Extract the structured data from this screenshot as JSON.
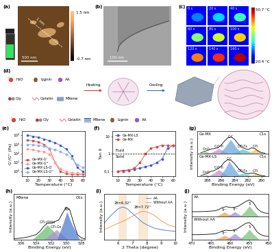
{
  "panels": {
    "a": {
      "panel_label": "(a)",
      "scale_bar": "500 nm",
      "height_line": "1 nm",
      "colorbar": {
        "max": "1.5 nm",
        "min": "-0.7 nm"
      }
    },
    "b": {
      "panel_label": "(b)",
      "scale_bar": "100 nm"
    },
    "c": {
      "panel_label": "(c)",
      "frames": [
        "0 s",
        "20 s",
        "40 s",
        "60 s",
        "80 s",
        "100 s",
        "120 s",
        "140 s",
        "160 s"
      ],
      "colorbar": {
        "max": "50.7 °C",
        "min": "20.4 °C"
      }
    },
    "d": {
      "panel_label": "(d)",
      "components": [
        "H₂O",
        "Lignin",
        "AA",
        "Gly",
        "Gelatin",
        "MXene"
      ],
      "steps": [
        "Heating",
        "Cooling"
      ],
      "key_items": [
        "H₂O",
        "Gly",
        "Gelatin",
        "MXene",
        "Lignin",
        "AA"
      ]
    }
  },
  "chart_data": [
    {
      "panel_label": "(e)",
      "type": "line",
      "xlabel": "Temperature (°C)",
      "ylabel": "G'/G'' (Pa)",
      "log": "y",
      "x": [
        10,
        15,
        20,
        25,
        30,
        35,
        40,
        45,
        50,
        55,
        60
      ],
      "xlim": [
        5,
        62
      ],
      "xticks": [
        10,
        20,
        30,
        40,
        50,
        60
      ],
      "ylim": [
        0.3,
        30000
      ],
      "yticks": [
        {
          "value": 1,
          "label": "10⁰"
        },
        {
          "value": 10,
          "label": "10¹"
        },
        {
          "value": 100,
          "label": "10²"
        },
        {
          "value": 1000,
          "label": "10³"
        },
        {
          "value": 10000,
          "label": "10⁴"
        }
      ],
      "legend": "lower left",
      "series": [
        {
          "name": "Ge-MX-G'",
          "color": "#e8413c",
          "marker": "square",
          "values": [
            3000,
            2500,
            1800,
            1000,
            300,
            10,
            1,
            0.6,
            0.5,
            0.5,
            0.5
          ]
        },
        {
          "name": "Ge-MX-G''",
          "color": "#f4a09a",
          "marker": "circle",
          "values": [
            300,
            250,
            200,
            150,
            80,
            10,
            2,
            1,
            0.8,
            0.7,
            0.7
          ]
        },
        {
          "name": "Ge-MX-LS-G'",
          "color": "#3a5fcd",
          "marker": "square",
          "values": [
            10000,
            8000,
            6000,
            4000,
            2500,
            1500,
            800,
            300,
            60,
            3,
            1
          ]
        },
        {
          "name": "Ge-MX-LS-G''",
          "color": "#8fb4e8",
          "marker": "circle",
          "values": [
            1000,
            900,
            800,
            600,
            400,
            250,
            150,
            80,
            30,
            6,
            3
          ]
        }
      ]
    },
    {
      "panel_label": "(f)",
      "type": "line",
      "xlabel": "Temperature (°C)",
      "ylabel": "Tan δ",
      "log": "y",
      "x": [
        10,
        15,
        20,
        25,
        30,
        35,
        40,
        45,
        50,
        55,
        60
      ],
      "xlim": [
        5,
        62
      ],
      "xticks": [
        10,
        20,
        30,
        40,
        50,
        60
      ],
      "ylim": [
        0.05,
        20
      ],
      "yticks": [
        0.1,
        1,
        10
      ],
      "threshold": 1,
      "regions": {
        "above": "Fluid",
        "below": "Solid"
      },
      "legend": "upper left",
      "series": [
        {
          "name": "Ge-MX-LS",
          "color": "#3a5fcd",
          "marker": "circle",
          "values": [
            0.1,
            0.11,
            0.12,
            0.13,
            0.15,
            0.18,
            0.22,
            0.3,
            0.5,
            2,
            3
          ]
        },
        {
          "name": "Ge-MX",
          "color": "#e8413c",
          "marker": "circle",
          "values": [
            0.1,
            0.1,
            0.11,
            0.15,
            0.3,
            1,
            2,
            2.5,
            3,
            3,
            3
          ]
        }
      ]
    },
    {
      "panel_label": "(g)",
      "type": "line",
      "title": "C1s",
      "xlabel": "Binding Energy (eV)",
      "ylabel": "Intensity (a.u.)",
      "tick_labels": "x",
      "xlim": [
        289.5,
        279
      ],
      "xticks": [
        288,
        286,
        284,
        282,
        280
      ],
      "ylim": [
        0,
        1.35
      ],
      "panels": [
        {
          "name": "Ge-MX",
          "x": [
            289,
            288.5,
            288,
            287.5,
            287,
            286.5,
            286,
            285.5,
            285,
            284.5,
            284,
            283.5,
            283,
            282.5,
            282,
            281.5,
            281,
            280.5,
            280,
            279.5
          ],
          "values": [
            0.05,
            0.12,
            0.2,
            0.28,
            0.3,
            0.35,
            0.5,
            0.75,
            0.95,
            1.0,
            0.85,
            0.6,
            0.4,
            0.3,
            0.25,
            0.35,
            0.3,
            0.15,
            0.06,
            0.03
          ],
          "components": [
            {
              "name": "C=O",
              "color": "#7fbf7f",
              "x": [
                289,
                288.5,
                288.2,
                287.9,
                287.4
              ],
              "values": [
                0,
                0.08,
                0.13,
                0.08,
                0
              ]
            },
            {
              "name": "C-O-Ti",
              "color": "#c78fd1",
              "x": [
                288,
                287,
                286.3,
                285.6,
                284.8
              ],
              "values": [
                0,
                0.15,
                0.3,
                0.15,
                0
              ]
            },
            {
              "name": "C-C",
              "color": "#6fa8dc",
              "x": [
                286.2,
                285.3,
                284.6,
                283.9,
                283
              ],
              "values": [
                0,
                0.45,
                0.85,
                0.45,
                0
              ]
            },
            {
              "name": "C-Ti-Tx",
              "color": "#5ec4c4",
              "x": [
                284.5,
                283.5,
                282.8,
                282,
                281.2
              ],
              "values": [
                0,
                0.15,
                0.28,
                0.15,
                0
              ]
            },
            {
              "name": "C-Ti",
              "color": "#f0c05a",
              "x": [
                282.2,
                281.4,
                280.9,
                280.4,
                279.7
              ],
              "values": [
                0,
                0.15,
                0.28,
                0.15,
                0
              ]
            }
          ]
        },
        {
          "name": "Ge-MX-LS",
          "x": [
            289,
            288.5,
            288,
            287.5,
            287,
            286.5,
            286,
            285.5,
            285,
            284.5,
            284,
            283.5,
            283,
            282.5,
            282,
            281.5,
            281,
            280.5,
            280,
            279.5
          ],
          "values": [
            0.05,
            0.1,
            0.2,
            0.3,
            0.35,
            0.45,
            0.6,
            0.85,
            1.0,
            0.95,
            0.75,
            0.5,
            0.3,
            0.2,
            0.15,
            0.2,
            0.18,
            0.1,
            0.05,
            0.02
          ],
          "components": [
            {
              "name": "C=O",
              "color": "#7fbf7f",
              "x": [
                289,
                288.5,
                288.2,
                287.9,
                287.4
              ],
              "values": [
                0,
                0.06,
                0.1,
                0.06,
                0
              ]
            },
            {
              "name": "C-O-Ti",
              "color": "#c78fd1",
              "x": [
                288,
                287,
                286.3,
                285.6,
                284.8
              ],
              "values": [
                0,
                0.2,
                0.4,
                0.2,
                0
              ]
            },
            {
              "name": "C-C",
              "color": "#6fa8dc",
              "x": [
                286.2,
                285.3,
                284.8,
                284.1,
                283.2
              ],
              "values": [
                0,
                0.5,
                0.9,
                0.5,
                0
              ]
            },
            {
              "name": "C-Ti-Tx",
              "color": "#5ec4c4",
              "x": [
                284.5,
                283.5,
                282.8,
                282,
                281.2
              ],
              "values": [
                0,
                0.1,
                0.18,
                0.1,
                0
              ]
            },
            {
              "name": "C-Ti",
              "color": "#f0c05a",
              "x": [
                282.2,
                281.4,
                280.9,
                280.4,
                279.7
              ],
              "values": [
                0,
                0.1,
                0.17,
                0.1,
                0
              ]
            }
          ]
        }
      ]
    },
    {
      "panel_label": "(h)",
      "type": "line",
      "title": "O1s",
      "xlabel": "Binding Energy (eV)",
      "ylabel": "Intensity (a.u.)",
      "tick_labels": "x",
      "xlim": [
        537,
        527.5
      ],
      "xticks": [
        536,
        534,
        532,
        530,
        528
      ],
      "ylim": [
        0,
        1.4
      ],
      "panels": [
        {
          "name": "MXene",
          "x": [
            537,
            536,
            535,
            534,
            533.5,
            533,
            532.5,
            532,
            531.5,
            531,
            530.5,
            530,
            529.5,
            529,
            528.5,
            528,
            527.5
          ],
          "values": [
            0.02,
            0.04,
            0.08,
            0.15,
            0.25,
            0.4,
            0.5,
            0.5,
            0.55,
            0.6,
            0.8,
            1.0,
            0.9,
            0.5,
            0.15,
            0.05,
            0.02
          ],
          "components": [
            {
              "name": "C-Ti-(OH)x",
              "color": "#6fbf73",
              "x": [
                534.5,
                533.3,
                532.5,
                531.7,
                530.8
              ],
              "values": [
                0,
                0.25,
                0.45,
                0.25,
                0
              ]
            },
            {
              "name": "C-Ti-Ox",
              "color": "#b38fd9",
              "x": [
                533,
                532,
                531.3,
                530.6,
                529.8
              ],
              "values": [
                0,
                0.16,
                0.3,
                0.16,
                0
              ]
            },
            {
              "name": "TiO₂",
              "color": "#4f7fd1",
              "x": [
                531.2,
                530.4,
                529.9,
                529.3,
                528.2
              ],
              "values": [
                0,
                0.5,
                0.85,
                0.5,
                0
              ]
            }
          ]
        }
      ]
    },
    {
      "panel_label": "(i)",
      "type": "line",
      "xlabel": "2 Theta (degree)",
      "ylabel": "Intensity (a.u.)",
      "tick_labels": "x",
      "x": [
        5,
        5.5,
        6,
        6.32,
        6.6,
        7,
        7.5,
        7.72,
        8,
        8.5,
        9,
        9.5,
        10
      ],
      "xlim": [
        5,
        10
      ],
      "xticks": [
        6,
        7,
        8,
        9,
        10
      ],
      "ylim": [
        0,
        1.4
      ],
      "legend": "upper right",
      "bands": [
        [
          6.0,
          6.6
        ],
        [
          7.4,
          8.1
        ]
      ],
      "annotations": [
        {
          "text": "2θ=6.32°",
          "x": 6.32
        },
        {
          "text": "2θ=7.72°",
          "x": 7.72
        }
      ],
      "series": [
        {
          "name": "AA",
          "color": "#3b6fd1",
          "values": [
            0.5,
            0.75,
            0.95,
            1.0,
            0.95,
            0.8,
            0.6,
            0.52,
            0.45,
            0.35,
            0.3,
            0.27,
            0.25
          ]
        },
        {
          "name": "Without AA",
          "color": "#f08a3c",
          "values": [
            0.3,
            0.4,
            0.5,
            0.56,
            0.62,
            0.72,
            0.84,
            0.87,
            0.85,
            0.75,
            0.58,
            0.45,
            0.38
          ]
        }
      ]
    },
    {
      "panel_label": "(j)",
      "type": "line",
      "xlabel": "Binding Energy (eV)",
      "ylabel": "Intensity (a.u.)",
      "tick_labels": "x",
      "xlim": [
        470,
        450
      ],
      "xticks": [
        470,
        465,
        460,
        455,
        450
      ],
      "ylim": [
        0,
        1.35
      ],
      "panels": [
        {
          "name": "AA",
          "x": [
            470,
            468,
            466,
            464,
            463,
            462,
            461,
            460,
            459,
            458,
            457,
            456,
            455,
            454,
            453,
            452,
            451,
            450
          ],
          "values": [
            0.3,
            0.3,
            0.32,
            0.35,
            0.42,
            0.55,
            0.6,
            0.55,
            0.55,
            0.62,
            0.75,
            0.9,
            1.0,
            0.85,
            0.5,
            0.3,
            0.22,
            0.2
          ],
          "components": [
            {
              "name": "Ti²⁺",
              "color": "#f0a050",
              "x": [
                464,
                462.5,
                461.5,
                460.5,
                459
              ],
              "values": [
                0,
                0.15,
                0.28,
                0.15,
                0
              ]
            },
            {
              "name": "Ti³⁺",
              "color": "#a98bd6",
              "x": [
                461,
                459.8,
                458.8,
                457.8,
                456.5
              ],
              "values": [
                0,
                0.15,
                0.3,
                0.15,
                0
              ]
            },
            {
              "name": "Ti",
              "color": "#7cc47c",
              "x": [
                457.5,
                456,
                455,
                454,
                452.5
              ],
              "values": [
                0,
                0.35,
                0.65,
                0.35,
                0
              ]
            }
          ]
        },
        {
          "name": "Without AA",
          "x": [
            470,
            468,
            466,
            464,
            463,
            462,
            461,
            460,
            459,
            458,
            457,
            456,
            455,
            454,
            453,
            452,
            451,
            450
          ],
          "values": [
            0.28,
            0.28,
            0.3,
            0.33,
            0.4,
            0.5,
            0.55,
            0.52,
            0.55,
            0.65,
            0.8,
            0.95,
            1.0,
            0.8,
            0.45,
            0.28,
            0.2,
            0.18
          ],
          "components": [
            {
              "name": "Ti²⁺",
              "color": "#f0a050",
              "x": [
                464,
                462.5,
                461.5,
                460.5,
                459
              ],
              "values": [
                0,
                0.13,
                0.24,
                0.13,
                0
              ]
            },
            {
              "name": "Ti³⁺",
              "color": "#a98bd6",
              "x": [
                461,
                459.8,
                458.8,
                457.8,
                456.5
              ],
              "values": [
                0,
                0.18,
                0.35,
                0.18,
                0
              ]
            },
            {
              "name": "Ti",
              "color": "#7cc47c",
              "x": [
                457.5,
                456,
                455,
                454,
                452.5
              ],
              "values": [
                0,
                0.33,
                0.6,
                0.33,
                0
              ]
            }
          ]
        }
      ]
    }
  ]
}
